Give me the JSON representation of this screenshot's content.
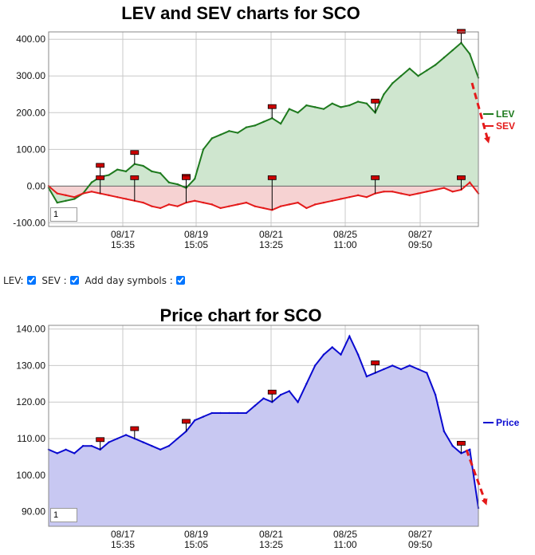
{
  "lev_chart": {
    "title": "LEV and SEV charts for SCO",
    "legend": [
      {
        "name": "LEV",
        "color": "#1e7a1e"
      },
      {
        "name": "SEV",
        "color": "#e41a1a"
      }
    ],
    "zoom_value": "1"
  },
  "price_chart": {
    "title": "Price chart for SCO",
    "legend": [
      {
        "name": "Price",
        "color": "#0a0ad0"
      }
    ],
    "zoom_value": "1"
  },
  "controls": {
    "lev_label": "LEV:",
    "sev_label": "SEV :",
    "day_symbols_label": "Add day symbols :",
    "lev_checked": true,
    "sev_checked": true,
    "day_symbols_checked": true
  },
  "colors": {
    "lev_line": "#1e7a1e",
    "lev_fill": "#cfe6cf",
    "sev_line": "#e41a1a",
    "sev_fill": "#f6d2d2",
    "price_line": "#0a0ad0",
    "price_fill": "#c8c8f2",
    "day_marker": "#cc0000",
    "trend_arrow": "#e41a1a",
    "grid": "#c8c8c8"
  },
  "chart_data": [
    {
      "type": "line",
      "title": "LEV and SEV charts for SCO",
      "xlabel": "",
      "ylabel": "",
      "x_ticks": [
        {
          "date": "08/17",
          "time": "15:35"
        },
        {
          "date": "08/19",
          "time": "15:05"
        },
        {
          "date": "08/21",
          "time": "13:25"
        },
        {
          "date": "08/25",
          "time": "11:00"
        },
        {
          "date": "08/27",
          "time": "09:50"
        }
      ],
      "y_ticks": [
        "400.00",
        "300.00",
        "200.00",
        "100.00",
        "0.00",
        "-100.00"
      ],
      "ylim": [
        -110,
        420
      ],
      "grid": true,
      "legend_position": "right",
      "series": [
        {
          "name": "LEV",
          "x": [
            0,
            2,
            4,
            6,
            8,
            10,
            12,
            14,
            16,
            18,
            20,
            22,
            24,
            26,
            28,
            30,
            32,
            34,
            36,
            38,
            40,
            42,
            44,
            46,
            48,
            50,
            52,
            54,
            56,
            58,
            60,
            62,
            64,
            66,
            68,
            70,
            72,
            74,
            76,
            78,
            80,
            82,
            84,
            86,
            88,
            90,
            92,
            94,
            96,
            98,
            100
          ],
          "values": [
            -5,
            -45,
            -40,
            -35,
            -20,
            10,
            25,
            30,
            45,
            40,
            60,
            55,
            40,
            35,
            10,
            5,
            -5,
            20,
            100,
            130,
            140,
            150,
            145,
            160,
            165,
            175,
            185,
            170,
            210,
            200,
            220,
            215,
            210,
            225,
            215,
            220,
            230,
            225,
            200,
            250,
            280,
            300,
            320,
            300,
            315,
            330,
            350,
            370,
            390,
            360,
            295
          ]
        },
        {
          "name": "SEV",
          "x": [
            0,
            2,
            4,
            6,
            8,
            10,
            12,
            14,
            16,
            18,
            20,
            22,
            24,
            26,
            28,
            30,
            32,
            34,
            36,
            38,
            40,
            42,
            44,
            46,
            48,
            50,
            52,
            54,
            56,
            58,
            60,
            62,
            64,
            66,
            68,
            70,
            72,
            74,
            76,
            78,
            80,
            82,
            84,
            86,
            88,
            90,
            92,
            94,
            96,
            98,
            100
          ],
          "values": [
            0,
            -20,
            -25,
            -30,
            -20,
            -15,
            -20,
            -25,
            -30,
            -35,
            -40,
            -45,
            -55,
            -60,
            -50,
            -55,
            -45,
            -40,
            -45,
            -50,
            -60,
            -55,
            -50,
            -45,
            -55,
            -60,
            -65,
            -55,
            -50,
            -45,
            -60,
            -50,
            -45,
            -40,
            -35,
            -30,
            -25,
            -30,
            -20,
            -15,
            -15,
            -20,
            -25,
            -20,
            -15,
            -10,
            -5,
            -15,
            -10,
            10,
            -20
          ]
        }
      ]
    },
    {
      "type": "area",
      "title": "Price chart for SCO",
      "xlabel": "",
      "ylabel": "",
      "x_ticks": [
        {
          "date": "08/17",
          "time": "15:35"
        },
        {
          "date": "08/19",
          "time": "15:05"
        },
        {
          "date": "08/21",
          "time": "13:25"
        },
        {
          "date": "08/25",
          "time": "11:00"
        },
        {
          "date": "08/27",
          "time": "09:50"
        }
      ],
      "y_ticks": [
        "140.00",
        "130.00",
        "120.00",
        "110.00",
        "100.00",
        "90.00"
      ],
      "ylim": [
        86,
        141
      ],
      "grid": true,
      "legend_position": "right",
      "series": [
        {
          "name": "Price",
          "x": [
            0,
            2,
            4,
            6,
            8,
            10,
            12,
            14,
            16,
            18,
            20,
            22,
            24,
            26,
            28,
            30,
            32,
            34,
            36,
            38,
            40,
            42,
            44,
            46,
            48,
            50,
            52,
            54,
            56,
            58,
            60,
            62,
            64,
            66,
            68,
            70,
            72,
            74,
            76,
            78,
            80,
            82,
            84,
            86,
            88,
            90,
            92,
            94,
            96,
            98,
            100
          ],
          "values": [
            107,
            106,
            107,
            106,
            108,
            108,
            107,
            109,
            110,
            111,
            110,
            109,
            108,
            107,
            108,
            110,
            112,
            115,
            116,
            117,
            117,
            117,
            117,
            117,
            119,
            121,
            120,
            122,
            123,
            120,
            125,
            130,
            133,
            135,
            133,
            138,
            133,
            127,
            128,
            129,
            130,
            129,
            130,
            129,
            128,
            122,
            112,
            108,
            106,
            107,
            91
          ]
        }
      ]
    }
  ]
}
